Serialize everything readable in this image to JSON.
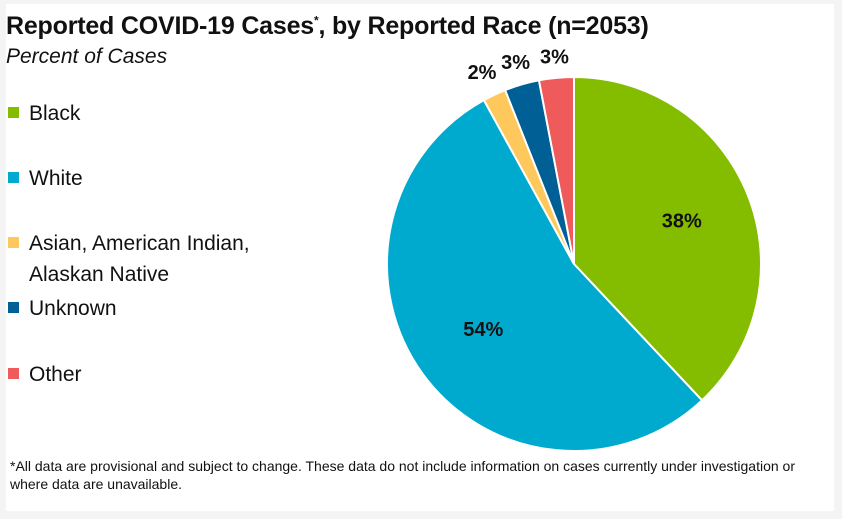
{
  "chart": {
    "title_main": "Reported COVID-19 Cases",
    "title_mark": "*",
    "title_rest": ", by Reported Race (n=2053)",
    "subtitle": "Percent of Cases",
    "footnote": "*All data are provisional and subject to change. These data do not include information on cases currently under investigation or where data are unavailable."
  },
  "chart_data": {
    "type": "pie",
    "title": "Reported COVID-19 Cases*, by Reported Race (n=2053)",
    "subtitle": "Percent of Cases",
    "unit": "%",
    "legend_position": "left",
    "slices": [
      {
        "name": "Black",
        "value": 38,
        "label": "38%",
        "color": "#84bd00"
      },
      {
        "name": "White",
        "value": 54,
        "label": "54%",
        "color": "#00a9ce"
      },
      {
        "name": "Asian, American Indian, Alaskan Native",
        "value": 2,
        "label": "2%",
        "color": "#ffc85c"
      },
      {
        "name": "Unknown",
        "value": 3,
        "label": "3%",
        "color": "#005f94"
      },
      {
        "name": "Other",
        "value": 3,
        "label": "3%",
        "color": "#ef5b5b"
      }
    ]
  }
}
